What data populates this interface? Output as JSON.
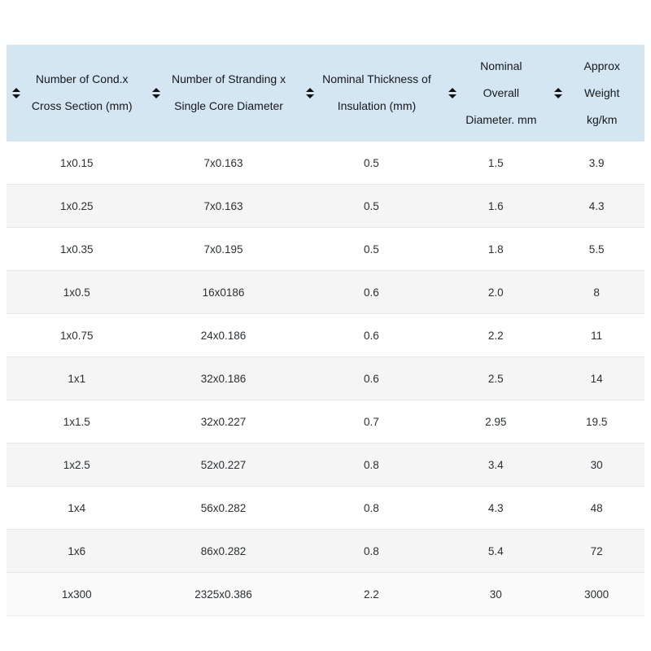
{
  "colors": {
    "header_background": "#d3e6f2",
    "row_stripe": "#f5f5f5",
    "last_row_background": "#fafafa",
    "row_border": "#e7e7e7",
    "text": "#212529"
  },
  "table": {
    "columns": [
      {
        "key": "cond_cross_section",
        "label": "Number of Cond.x\nCross Section (mm)",
        "sortable": true
      },
      {
        "key": "stranding_core_diameter",
        "label": "Number of Stranding x\nSingle Core Diameter",
        "sortable": true
      },
      {
        "key": "insulation_thickness",
        "label": "Nominal Thickness of\nInsulation (mm)",
        "sortable": true
      },
      {
        "key": "overall_diameter",
        "label": "Nominal\nOverall\nDiameter. mm",
        "sortable": true
      },
      {
        "key": "approx_weight",
        "label": "Approx\nWeight\nkg/km",
        "sortable": true
      }
    ],
    "rows": [
      [
        "1x0.15",
        "7x0.163",
        "0.5",
        "1.5",
        "3.9"
      ],
      [
        "1x0.25",
        "7x0.163",
        "0.5",
        "1.6",
        "4.3"
      ],
      [
        "1x0.35",
        "7x0.195",
        "0.5",
        "1.8",
        "5.5"
      ],
      [
        "1x0.5",
        "16x0186",
        "0.6",
        "2.0",
        "8"
      ],
      [
        "1x0.75",
        "24x0.186",
        "0.6",
        "2.2",
        "11"
      ],
      [
        "1x1",
        "32x0.186",
        "0.6",
        "2.5",
        "14"
      ],
      [
        "1x1.5",
        "32x0.227",
        "0.7",
        "2.95",
        "19.5"
      ],
      [
        "1x2.5",
        "52x0.227",
        "0.8",
        "3.4",
        "30"
      ],
      [
        "1x4",
        "56x0.282",
        "0.8",
        "4.3",
        "48"
      ],
      [
        "1x6",
        "86x0.282",
        "0.8",
        "5.4",
        "72"
      ],
      [
        "1x300",
        "2325x0.386",
        "2.2",
        "30",
        "3000"
      ]
    ]
  }
}
